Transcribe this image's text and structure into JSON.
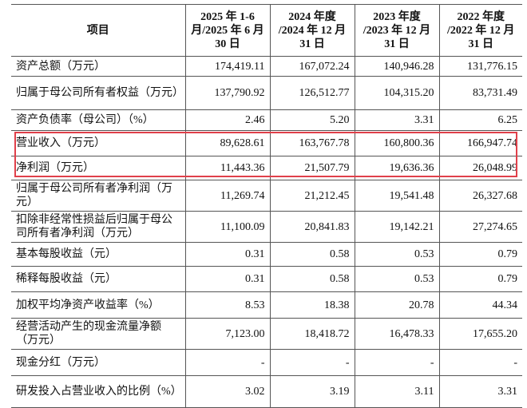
{
  "table": {
    "header": [
      "项目",
      "2025 年 1-6 月/2025 年 6 月 30 日",
      "2024 年度 /2024 年 12 月 31 日",
      "2023 年度 /2023 年 12 月 31 日",
      "2022 年度 /2022 年 12 月 31 日"
    ],
    "rows": [
      [
        "资产总额（万元）",
        "174,419.11",
        "167,072.24",
        "140,946.28",
        "131,776.15"
      ],
      [
        "归属于母公司所有者权益（万元）",
        "137,790.92",
        "126,512.77",
        "104,315.20",
        "83,731.49"
      ],
      [
        "资产负债率（母公司）（%）",
        "2.46",
        "5.20",
        "3.31",
        "6.25"
      ],
      [
        "营业收入（万元）",
        "89,628.61",
        "163,767.78",
        "160,800.36",
        "166,947.74"
      ],
      [
        "净利润（万元）",
        "11,443.36",
        "21,507.79",
        "19,636.36",
        "26,048.99"
      ],
      [
        "归属于母公司所有者净利润（万元）",
        "11,269.74",
        "21,212.45",
        "19,541.48",
        "26,327.68"
      ],
      [
        "扣除非经常性损益后归属于母公司所有者净利润（万元）",
        "11,100.09",
        "20,841.83",
        "19,142.21",
        "27,274.65"
      ],
      [
        "基本每股收益（元）",
        "0.31",
        "0.58",
        "0.53",
        "0.79"
      ],
      [
        "稀释每股收益（元）",
        "0.31",
        "0.58",
        "0.53",
        "0.79"
      ],
      [
        "加权平均净资产收益率（%）",
        "8.53",
        "18.38",
        "20.78",
        "44.34"
      ],
      [
        "经营活动产生的现金流量净额（万元）",
        "7,123.00",
        "18,418.72",
        "16,478.33",
        "17,655.20"
      ],
      [
        "现金分红（万元）",
        "-",
        "-",
        "-",
        "-"
      ],
      [
        "研发投入占营业收入的比例（%）",
        "3.02",
        "3.19",
        "3.11",
        "3.31"
      ]
    ]
  }
}
